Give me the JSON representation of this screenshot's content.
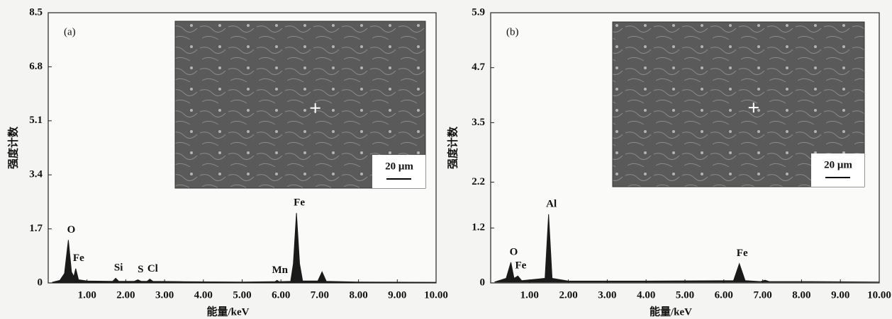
{
  "chart_data": [
    {
      "type": "area",
      "panel_label": "(a)",
      "xlabel": "能量/keV",
      "ylabel": "强度计数",
      "xlim": [
        0,
        10
      ],
      "ylim": [
        0,
        8.5
      ],
      "xticks": [
        {
          "value": 1,
          "label": "1.00"
        },
        {
          "value": 2,
          "label": "2.00"
        },
        {
          "value": 3,
          "label": "3.00"
        },
        {
          "value": 4,
          "label": "4.00"
        },
        {
          "value": 5,
          "label": "5.00"
        },
        {
          "value": 6,
          "label": "6.00"
        },
        {
          "value": 7,
          "label": "7.00"
        },
        {
          "value": 8,
          "label": "8.00"
        },
        {
          "value": 9,
          "label": "9.00"
        },
        {
          "value": 10,
          "label": "10.00"
        }
      ],
      "yticks": [
        0,
        1.7,
        3.4,
        5.1,
        6.8,
        8.5
      ],
      "series": [
        {
          "color": "#1a1a1a",
          "x": [
            0.1,
            0.3,
            0.42,
            0.52,
            0.6,
            0.66,
            0.71,
            0.78,
            1.0,
            1.66,
            1.74,
            1.82,
            2.22,
            2.31,
            2.4,
            2.55,
            2.62,
            2.7,
            3.5,
            5.0,
            5.85,
            5.9,
            5.95,
            6.25,
            6.32,
            6.4,
            6.48,
            6.56,
            6.95,
            7.06,
            7.17,
            8.0,
            10.0
          ],
          "values": [
            0.02,
            0.08,
            0.3,
            1.35,
            0.35,
            0.2,
            0.45,
            0.1,
            0.06,
            0.05,
            0.15,
            0.05,
            0.05,
            0.1,
            0.05,
            0.05,
            0.12,
            0.05,
            0.04,
            0.03,
            0.04,
            0.08,
            0.04,
            0.05,
            0.6,
            2.2,
            0.6,
            0.06,
            0.06,
            0.35,
            0.05,
            0.03,
            0.02
          ]
        }
      ],
      "annotations": [
        {
          "text": "O",
          "x": 0.52
        },
        {
          "text": "Fe",
          "x": 0.71
        },
        {
          "text": "Si",
          "x": 1.74
        },
        {
          "text": "S",
          "x": 2.31
        },
        {
          "text": "Cl",
          "x": 2.62
        },
        {
          "text": "Mn",
          "x": 5.9
        },
        {
          "text": "Fe",
          "x": 6.4
        }
      ],
      "scale_bar": "20 μm"
    },
    {
      "type": "area",
      "panel_label": "(b)",
      "xlabel": "能量/keV",
      "ylabel": "强度计数",
      "xlim": [
        0,
        10
      ],
      "ylim": [
        0,
        5.9
      ],
      "xticks": [
        {
          "value": 1,
          "label": "1.00"
        },
        {
          "value": 2,
          "label": "2.00"
        },
        {
          "value": 3,
          "label": "3.00"
        },
        {
          "value": 4,
          "label": "4.00"
        },
        {
          "value": 5,
          "label": "5.00"
        },
        {
          "value": 6,
          "label": "6.00"
        },
        {
          "value": 7,
          "label": "7.00"
        },
        {
          "value": 8,
          "label": "8.00"
        },
        {
          "value": 9,
          "label": "9.00"
        },
        {
          "value": 10,
          "label": "10.00"
        }
      ],
      "yticks": [
        0,
        1.2,
        2.2,
        3.5,
        4.7,
        5.9
      ],
      "series": [
        {
          "color": "#1a1a1a",
          "x": [
            0.1,
            0.4,
            0.52,
            0.6,
            0.7,
            0.8,
            1.4,
            1.49,
            1.58,
            2.0,
            4.0,
            6.25,
            6.4,
            6.55,
            6.95,
            7.06,
            7.17,
            8.0,
            10.0
          ],
          "values": [
            0.02,
            0.1,
            0.45,
            0.1,
            0.15,
            0.05,
            0.1,
            1.5,
            0.1,
            0.04,
            0.04,
            0.05,
            0.42,
            0.05,
            0.03,
            0.06,
            0.03,
            0.03,
            0.02
          ]
        }
      ],
      "annotations": [
        {
          "text": "O",
          "x": 0.52
        },
        {
          "text": "Fe",
          "x": 0.7
        },
        {
          "text": "Al",
          "x": 1.49
        },
        {
          "text": "Fe",
          "x": 6.4
        }
      ],
      "scale_bar": "20 μm"
    }
  ]
}
